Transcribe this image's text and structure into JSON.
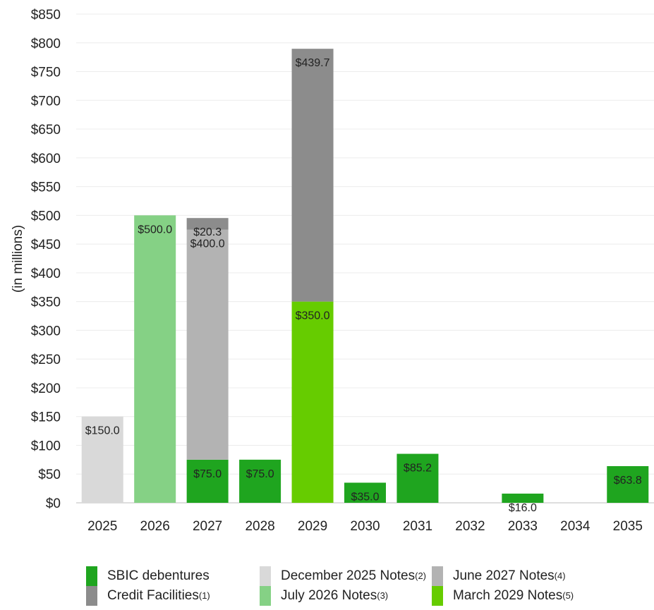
{
  "chart_data": {
    "type": "bar",
    "stacked": true,
    "title": "",
    "xlabel": "",
    "ylabel": "(in millions)",
    "ylim": [
      0,
      850
    ],
    "y_step": 50,
    "y_tick_format": "$",
    "grid": true,
    "legend_position": "bottom",
    "categories": [
      "2025",
      "2026",
      "2027",
      "2028",
      "2029",
      "2030",
      "2031",
      "2032",
      "2033",
      "2034",
      "2035"
    ],
    "series": [
      {
        "key": "sbic",
        "name": "SBIC debentures",
        "sup": "",
        "color": "#1fa51f",
        "values": [
          0,
          0,
          75.0,
          75.0,
          0,
          35.0,
          85.2,
          0,
          16.0,
          0,
          63.8
        ],
        "labels": [
          "",
          "",
          "$75.0",
          "$75.0",
          "",
          "$35.0",
          "$85.2",
          "",
          "$16.0",
          "",
          "$63.8"
        ]
      },
      {
        "key": "dec2025",
        "name": "December 2025 Notes",
        "sup": "(2)",
        "color": "#d9d9d9",
        "values": [
          150.0,
          0,
          0,
          0,
          0,
          0,
          0,
          0,
          0,
          0,
          0
        ],
        "labels": [
          "$150.0",
          "",
          "",
          "",
          "",
          "",
          "",
          "",
          "",
          "",
          ""
        ]
      },
      {
        "key": "jul2026",
        "name": "July 2026 Notes",
        "sup": "(3)",
        "color": "#85d185",
        "values": [
          0,
          500.0,
          0,
          0,
          0,
          0,
          0,
          0,
          0,
          0,
          0
        ],
        "labels": [
          "",
          "$500.0",
          "",
          "",
          "",
          "",
          "",
          "",
          "",
          "",
          ""
        ]
      },
      {
        "key": "jun2027",
        "name": "June 2027 Notes",
        "sup": "(4)",
        "color": "#b3b3b3",
        "values": [
          0,
          0,
          400.0,
          0,
          0,
          0,
          0,
          0,
          0,
          0,
          0
        ],
        "labels": [
          "",
          "",
          "$400.0",
          "",
          "",
          "",
          "",
          "",
          "",
          "",
          ""
        ]
      },
      {
        "key": "mar2029",
        "name": "March 2029 Notes",
        "sup": "(5)",
        "color": "#66cc00",
        "values": [
          0,
          0,
          0,
          0,
          350.0,
          0,
          0,
          0,
          0,
          0,
          0
        ],
        "labels": [
          "",
          "",
          "",
          "",
          "$350.0",
          "",
          "",
          "",
          "",
          "",
          ""
        ]
      },
      {
        "key": "credit",
        "name": "Credit Facilities",
        "sup": "(1)",
        "color": "#8c8c8c",
        "values": [
          0,
          0,
          20.3,
          0,
          439.7,
          0,
          0,
          0,
          0,
          0,
          0
        ],
        "labels": [
          "",
          "",
          "$20.3",
          "",
          "$439.7",
          "",
          "",
          "",
          "",
          "",
          ""
        ]
      }
    ],
    "legend_order": [
      "sbic",
      "credit",
      "dec2025",
      "jul2026",
      "jun2027",
      "mar2029"
    ]
  }
}
